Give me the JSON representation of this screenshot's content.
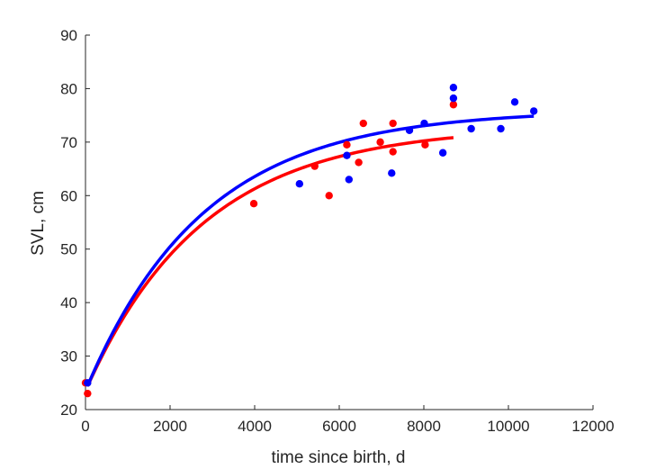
{
  "chart_data": {
    "type": "scatter",
    "xlabel": "time since birth, d",
    "ylabel": "SVL, cm",
    "xlim": [
      0,
      12000
    ],
    "ylim": [
      20,
      90
    ],
    "xticks": [
      0,
      2000,
      4000,
      6000,
      8000,
      10000,
      12000
    ],
    "yticks": [
      20,
      30,
      40,
      50,
      60,
      70,
      80,
      90
    ],
    "grid": false,
    "legend": "none",
    "series": [
      {
        "color": "#ff0000",
        "points": [
          [
            0,
            25
          ],
          [
            50,
            23
          ],
          [
            3980,
            58.5
          ],
          [
            5420,
            65.5
          ],
          [
            5760,
            60
          ],
          [
            6180,
            69.5
          ],
          [
            6460,
            66.2
          ],
          [
            6570,
            73.5
          ],
          [
            6970,
            70
          ],
          [
            7270,
            73.5
          ],
          [
            7270,
            68.2
          ],
          [
            8030,
            69.5
          ],
          [
            8700,
            77
          ]
        ],
        "fit": {
          "model": "von Bertalanffy",
          "L0": 23.5,
          "Linf": 73,
          "k": 0.00036,
          "x_range": [
            50,
            8700
          ]
        }
      },
      {
        "color": "#0000ff",
        "points": [
          [
            50,
            25
          ],
          [
            5060,
            62.2
          ],
          [
            6180,
            67.5
          ],
          [
            6230,
            63
          ],
          [
            7240,
            64.2
          ],
          [
            7660,
            72.2
          ],
          [
            8010,
            73.5
          ],
          [
            8450,
            68
          ],
          [
            8700,
            80.2
          ],
          [
            8700,
            78.2
          ],
          [
            9120,
            72.5
          ],
          [
            9820,
            72.5
          ],
          [
            10150,
            77.5
          ],
          [
            10600,
            75.8
          ]
        ],
        "fit": {
          "model": "von Bertalanffy",
          "L0": 23.5,
          "Linf": 76,
          "k": 0.00036,
          "x_range": [
            50,
            10600
          ]
        }
      }
    ]
  }
}
